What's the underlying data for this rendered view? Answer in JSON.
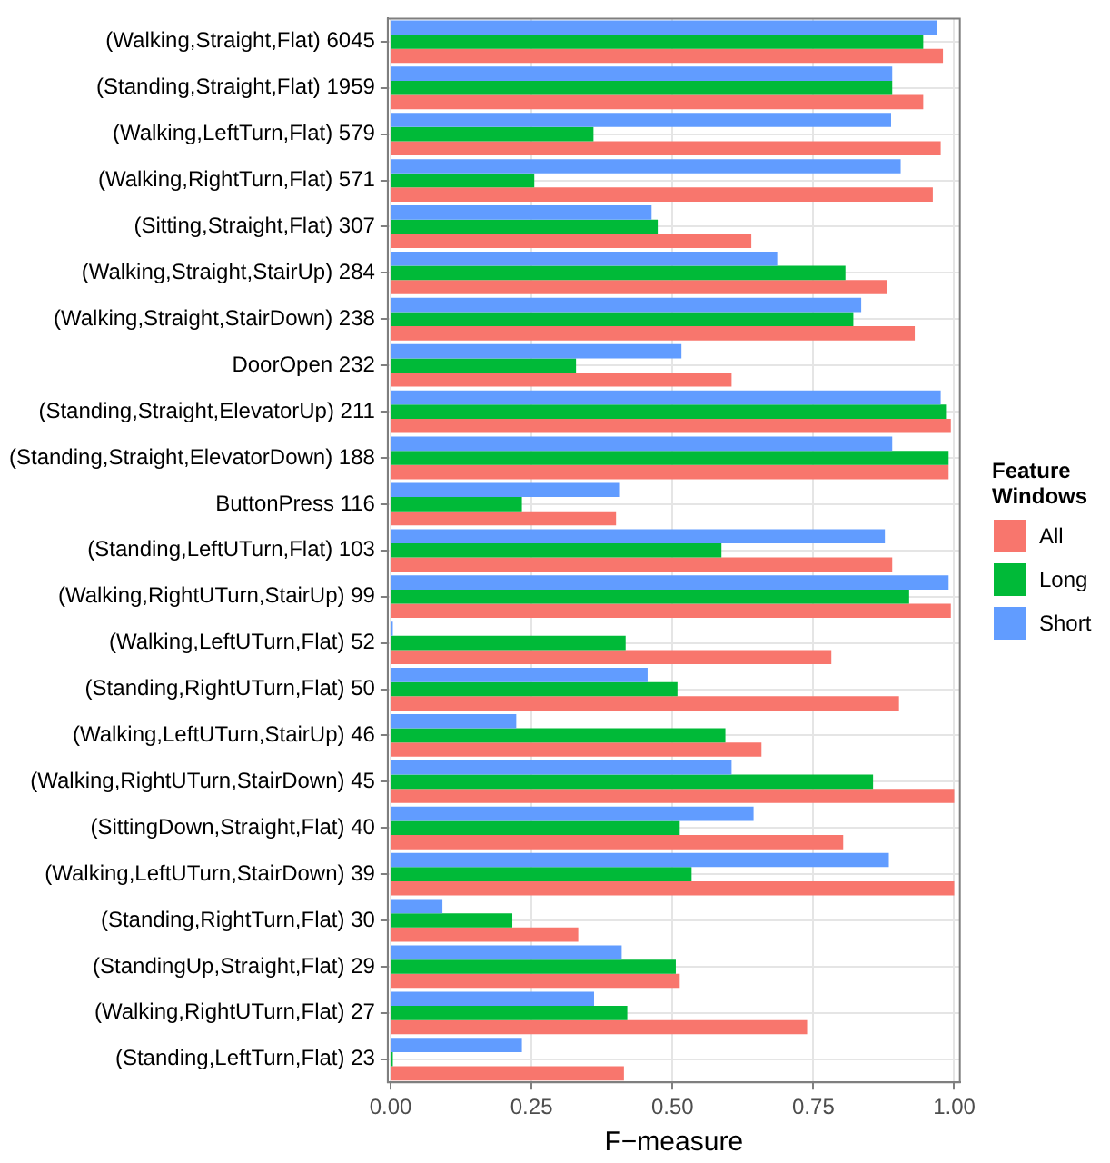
{
  "chart_data": {
    "type": "bar",
    "orientation": "horizontal",
    "xlabel": "F−measure",
    "legend_title": "Feature Windows",
    "legend": "right",
    "grid": true,
    "categories": [
      "(Walking,Straight,Flat) 6045",
      "(Standing,Straight,Flat) 1959",
      "(Walking,LeftTurn,Flat) 579",
      "(Walking,RightTurn,Flat) 571",
      "(Sitting,Straight,Flat) 307",
      "(Walking,Straight,StairUp) 284",
      "(Walking,Straight,StairDown) 238",
      "DoorOpen 232",
      "(Standing,Straight,ElevatorUp) 211",
      "(Standing,Straight,ElevatorDown) 188",
      "ButtonPress 116",
      "(Standing,LeftUTurn,Flat) 103",
      "(Walking,RightUTurn,StairUp) 99",
      "(Walking,LeftUTurn,Flat) 52",
      "(Standing,RightUTurn,Flat) 50",
      "(Walking,LeftUTurn,StairUp) 46",
      "(Walking,RightUTurn,StairDown) 45",
      "(SittingDown,Straight,Flat) 40",
      "(Walking,LeftUTurn,StairDown) 39",
      "(Standing,RightTurn,Flat) 30",
      "(StandingUp,Straight,Flat) 29",
      "(Walking,RightUTurn,Flat) 27",
      "(Standing,LeftTurn,Flat) 23"
    ],
    "series": [
      {
        "name": "All",
        "color": "#f8766d",
        "values": [
          0.98,
          0.945,
          0.976,
          0.962,
          0.64,
          0.881,
          0.93,
          0.605,
          0.994,
          0.99,
          0.4,
          0.89,
          0.994,
          0.782,
          0.902,
          0.658,
          1.0,
          0.803,
          1.0,
          0.333,
          0.513,
          0.739,
          0.414
        ]
      },
      {
        "name": "Long",
        "color": "#00ba38",
        "values": [
          0.945,
          0.89,
          0.36,
          0.255,
          0.474,
          0.807,
          0.821,
          0.329,
          0.987,
          0.99,
          0.233,
          0.587,
          0.92,
          0.417,
          0.509,
          0.594,
          0.856,
          0.513,
          0.534,
          0.216,
          0.506,
          0.42,
          0.004
        ]
      },
      {
        "name": "Short",
        "color": "#619cff",
        "values": [
          0.97,
          0.89,
          0.888,
          0.905,
          0.463,
          0.686,
          0.835,
          0.516,
          0.976,
          0.89,
          0.407,
          0.877,
          0.99,
          0.004,
          0.456,
          0.223,
          0.605,
          0.644,
          0.884,
          0.092,
          0.41,
          0.361,
          0.233
        ]
      }
    ],
    "xlim": [
      -0.005,
      1.01
    ],
    "xticks": [
      {
        "value": 0,
        "label": "0.00"
      },
      {
        "value": 0.25,
        "label": "0.25"
      },
      {
        "value": 0.5,
        "label": "0.50"
      },
      {
        "value": 0.75,
        "label": "0.75"
      },
      {
        "value": 1,
        "label": "1.00"
      }
    ]
  }
}
